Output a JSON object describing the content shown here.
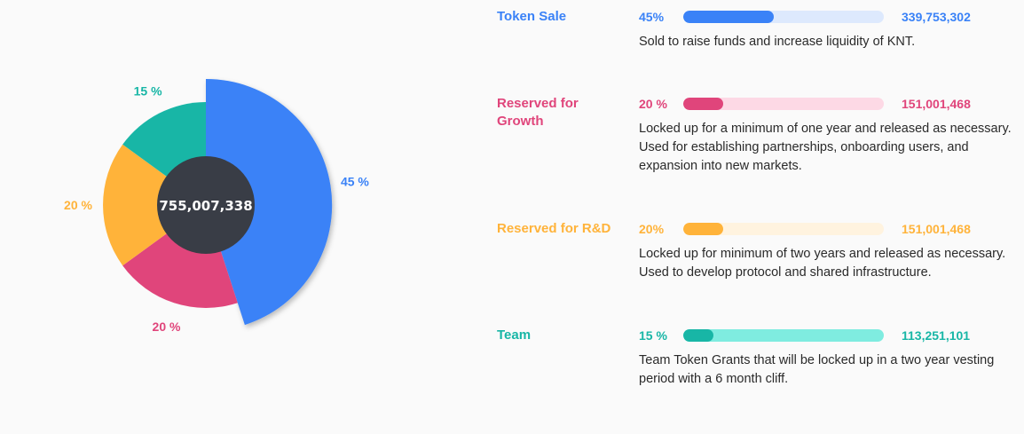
{
  "chart_data": {
    "type": "pie",
    "total_label": "755,007,338",
    "slices": [
      {
        "label": "45 %",
        "value": 45,
        "color": "#3a82f7"
      },
      {
        "label": "20 %",
        "value": 20,
        "color": "#e0457b"
      },
      {
        "label": "20 %",
        "value": 20,
        "color": "#ffb33a"
      },
      {
        "label": "15 %",
        "value": 15,
        "color": "#18b6a6"
      }
    ]
  },
  "allocations": [
    {
      "name": "Token Sale",
      "percent_text": "45%",
      "amount": "339,753,302",
      "fill_fraction": 0.45,
      "description": "Sold to raise funds and increase liquidity of KNT.",
      "color": "#3a82f7",
      "track_color": "#dde9fd"
    },
    {
      "name": "Reserved for Growth",
      "percent_text": "20 %",
      "amount": "151,001,468",
      "fill_fraction": 0.2,
      "description": "Locked up for a minimum of one year and released as necessary. Used for establishing partnerships, onboarding users, and expansion into new markets.",
      "color": "#e0457b",
      "track_color": "#fdd9e5"
    },
    {
      "name": "Reserved for R&D",
      "percent_text": "20%",
      "amount": "151,001,468",
      "fill_fraction": 0.2,
      "description": "Locked up for minimum of two years and released as necessary. Used to develop protocol and shared infrastructure.",
      "color": "#ffb33a",
      "track_color": "#fff3df"
    },
    {
      "name": "Team",
      "percent_text": "15 %",
      "amount": "113,251,101",
      "fill_fraction": 0.15,
      "description": "Team Token Grants that will be locked up in a two year vesting period with a 6 month cliff.",
      "color": "#18b6a6",
      "track_color": "#7fece0"
    }
  ]
}
